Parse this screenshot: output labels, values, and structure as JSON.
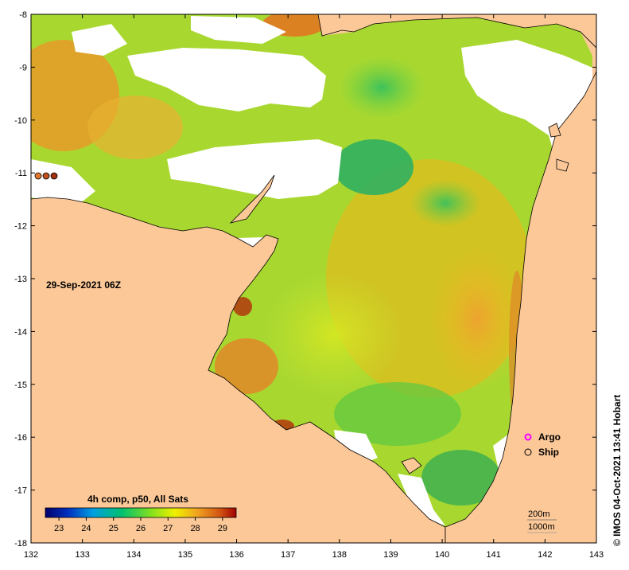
{
  "map": {
    "lon_ticks": [
      "132",
      "133",
      "134",
      "135",
      "136",
      "137",
      "138",
      "139",
      "140",
      "141",
      "142",
      "143"
    ],
    "lat_ticks": [
      "-8",
      "-9",
      "-10",
      "-11",
      "-12",
      "-13",
      "-14",
      "-15",
      "-16",
      "-17",
      "-18"
    ],
    "lon_range": [
      132,
      143
    ],
    "lat_range": [
      -8,
      -18
    ],
    "land_color": "#fcc898",
    "cloud_color": "#ffffff"
  },
  "timestamp": "29-Sep-2021 06Z",
  "colorbar": {
    "title": "4h comp, p50, All Sats",
    "ticks": [
      "23",
      "24",
      "25",
      "26",
      "27",
      "28",
      "29"
    ],
    "range": [
      22.5,
      29.5
    ],
    "colors": [
      "#00006a",
      "#0030c0",
      "#00a0e0",
      "#00c070",
      "#80e020",
      "#f0f000",
      "#f0a020",
      "#d05010",
      "#a00000"
    ]
  },
  "legend": {
    "argo_label": "Argo",
    "ship_label": "Ship",
    "argo_color": "#ff00ff"
  },
  "scale": {
    "depth_200": "200m",
    "depth_1000": "1000m"
  },
  "credit": "© IMOS 04-Oct-2021 13:41 Hobart"
}
